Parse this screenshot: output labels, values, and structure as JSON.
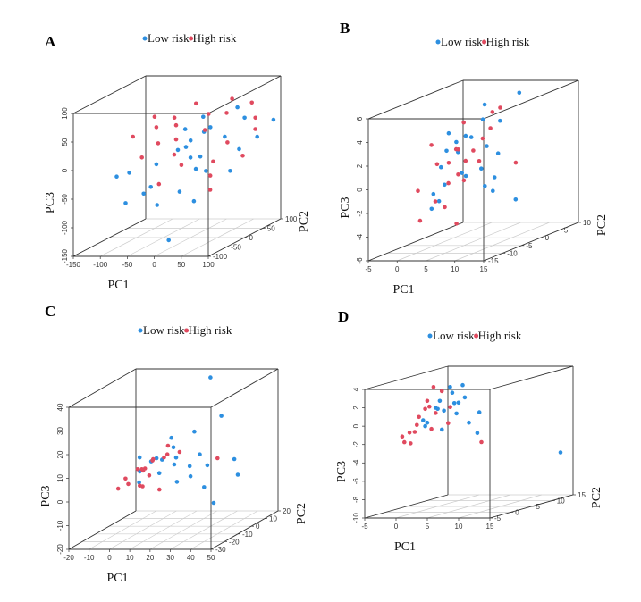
{
  "colors": {
    "low": "#2d8fe0",
    "high": "#e04a5f",
    "box": "#333333",
    "grid": "#cccccc"
  },
  "legend": {
    "low": "Low risk",
    "high": "High risk"
  },
  "chart_data": [
    {
      "type": "scatter3d",
      "panel": "A",
      "xlabel": "PC1",
      "ylabel": "PC2",
      "zlabel": "PC3",
      "xlim": [
        -150,
        100
      ],
      "ylim": [
        -100,
        100
      ],
      "zlim": [
        -150,
        100
      ],
      "xticks": [
        "-150",
        "-100",
        "-50",
        "0",
        "50",
        "100"
      ],
      "yticks": [
        "-100",
        "-50",
        "0",
        "50",
        "100"
      ],
      "zticks": [
        "-150",
        "-100",
        "-50",
        "0",
        "50",
        "100"
      ],
      "series": [
        {
          "name": "Low risk",
          "points": [
            [
              -100,
              -20,
              -30
            ],
            [
              -70,
              10,
              -25
            ],
            [
              -40,
              -50,
              -45
            ],
            [
              -20,
              30,
              10
            ],
            [
              0,
              0,
              -10
            ],
            [
              10,
              40,
              30
            ],
            [
              30,
              -30,
              -20
            ],
            [
              50,
              20,
              20
            ],
            [
              60,
              60,
              40
            ],
            [
              80,
              -10,
              -30
            ],
            [
              -60,
              -40,
              -60
            ],
            [
              -10,
              50,
              45
            ],
            [
              20,
              -60,
              -50
            ],
            [
              40,
              70,
              55
            ],
            [
              -30,
              10,
              0
            ],
            [
              5,
              -20,
              15
            ],
            [
              70,
              30,
              -5
            ],
            [
              90,
              50,
              10
            ],
            [
              -50,
              60,
              20
            ],
            [
              25,
              0,
              35
            ],
            [
              -15,
              -70,
              -70
            ],
            [
              45,
              -40,
              5
            ],
            [
              100,
              80,
              30
            ],
            [
              -80,
              -60,
              -70
            ],
            [
              15,
              20,
              -40
            ],
            [
              -130,
              -10,
              -40
            ],
            [
              60,
              -80,
              -60
            ],
            [
              20,
              -90,
              -125
            ]
          ]
        },
        {
          "name": "High risk",
          "points": [
            [
              -120,
              20,
              20
            ],
            [
              -90,
              40,
              30
            ],
            [
              -60,
              0,
              15
            ],
            [
              -40,
              20,
              40
            ],
            [
              -20,
              -10,
              25
            ],
            [
              0,
              50,
              50
            ],
            [
              20,
              10,
              35
            ],
            [
              40,
              40,
              55
            ],
            [
              60,
              80,
              60
            ],
            [
              80,
              60,
              40
            ],
            [
              -70,
              -30,
              0
            ],
            [
              -30,
              60,
              65
            ],
            [
              10,
              -40,
              -10
            ],
            [
              50,
              -20,
              -35
            ],
            [
              90,
              10,
              -10
            ],
            [
              -50,
              30,
              50
            ],
            [
              30,
              70,
              70
            ],
            [
              70,
              -50,
              -50
            ],
            [
              -10,
              -30,
              5
            ],
            [
              100,
              30,
              30
            ],
            [
              15,
              40,
              -30
            ],
            [
              -100,
              50,
              45
            ],
            [
              55,
              20,
              10
            ],
            [
              -25,
              -50,
              -40
            ]
          ]
        }
      ]
    },
    {
      "type": "scatter3d",
      "panel": "B",
      "xlabel": "PC1",
      "ylabel": "PC2",
      "zlabel": "PC3",
      "xlim": [
        -5,
        15
      ],
      "ylim": [
        -15,
        10
      ],
      "zlim": [
        -6,
        6
      ],
      "xticks": [
        "-5",
        "0",
        "5",
        "10",
        "15"
      ],
      "yticks": [
        "-15",
        "-10",
        "-5",
        "0",
        "5",
        "10"
      ],
      "zticks": [
        "-6",
        "-4",
        "-2",
        "0",
        "2",
        "4",
        "6"
      ],
      "series": [
        {
          "name": "Low risk",
          "points": [
            [
              2,
              -5,
              2
            ],
            [
              4,
              -3,
              3
            ],
            [
              3,
              -8,
              1
            ],
            [
              5,
              0,
              4
            ],
            [
              6,
              -6,
              0
            ],
            [
              1,
              -4,
              -1
            ],
            [
              4,
              2,
              5
            ],
            [
              7,
              -2,
              2
            ],
            [
              3,
              -10,
              -1
            ],
            [
              5,
              -7,
              3
            ],
            [
              2,
              -2,
              1.5
            ],
            [
              6,
              3,
              3.5
            ],
            [
              8,
              -5,
              0.5
            ],
            [
              4,
              -12,
              -2
            ],
            [
              3,
              0,
              2.5
            ],
            [
              7,
              1,
              1
            ],
            [
              5,
              -9,
              4
            ],
            [
              9,
              -3,
              -0.5
            ],
            [
              2,
              -7,
              -2
            ],
            [
              6,
              -1,
              -1.5
            ],
            [
              10,
              2,
              6
            ],
            [
              12,
              -8,
              -1
            ],
            [
              4,
              -4,
              0
            ],
            [
              12,
              -2,
              -2.5
            ]
          ]
        },
        {
          "name": "High risk",
          "points": [
            [
              1,
              -6,
              1
            ],
            [
              3,
              -4,
              2
            ],
            [
              2,
              -9,
              3
            ],
            [
              4,
              -1,
              1.5
            ],
            [
              5,
              -5,
              -0.5
            ],
            [
              3,
              -2,
              4
            ],
            [
              6,
              -8,
              2.5
            ],
            [
              2,
              0,
              0.5
            ],
            [
              4,
              -11,
              -1.5
            ],
            [
              5,
              2,
              3
            ],
            [
              7,
              -4,
              1
            ],
            [
              1,
              -3,
              -1
            ],
            [
              3,
              -7,
              -2.5
            ],
            [
              6,
              1,
              4.5
            ],
            [
              8,
              0,
              5
            ],
            [
              4,
              -5,
              0
            ],
            [
              2,
              -12,
              -3
            ],
            [
              5,
              -9,
              1.5
            ],
            [
              -1,
              -8,
              -1
            ],
            [
              14,
              -5,
              1
            ],
            [
              7,
              -10,
              -3.5
            ],
            [
              3,
              3,
              2
            ]
          ]
        }
      ]
    },
    {
      "type": "scatter3d",
      "panel": "C",
      "xlabel": "PC1",
      "ylabel": "PC2",
      "zlabel": "PC3",
      "xlim": [
        -20,
        50
      ],
      "ylim": [
        -30,
        20
      ],
      "zlim": [
        -20,
        40
      ],
      "xticks": [
        "-20",
        "-10",
        "0",
        "10",
        "20",
        "30",
        "40",
        "50"
      ],
      "yticks": [
        "-30",
        "-20",
        "-10",
        "0",
        "10",
        "20"
      ],
      "zticks": [
        "-20",
        "-10",
        "0",
        "10",
        "20",
        "30",
        "40"
      ],
      "series": [
        {
          "name": "Low risk",
          "points": [
            [
              5,
              -15,
              8
            ],
            [
              10,
              -10,
              12
            ],
            [
              15,
              -5,
              15
            ],
            [
              20,
              -12,
              10
            ],
            [
              8,
              -20,
              5
            ],
            [
              25,
              -8,
              8
            ],
            [
              30,
              -15,
              6
            ],
            [
              12,
              -2,
              18
            ],
            [
              18,
              -18,
              14
            ],
            [
              22,
              0,
              20
            ],
            [
              28,
              -5,
              12
            ],
            [
              35,
              -10,
              9
            ],
            [
              6,
              -8,
              10
            ],
            [
              14,
              -14,
              7
            ],
            [
              40,
              -20,
              3
            ],
            [
              45,
              -5,
              10
            ],
            [
              32,
              5,
              25
            ],
            [
              48,
              -25,
              -2
            ],
            [
              17,
              -6,
              11
            ],
            [
              24,
              -16,
              4
            ],
            [
              3,
              -12,
              13
            ],
            [
              20,
              15,
              38
            ],
            [
              50,
              -10,
              5
            ]
          ]
        },
        {
          "name": "High risk",
          "points": [
            [
              0,
              -18,
              6
            ],
            [
              2,
              -12,
              8
            ],
            [
              4,
              -22,
              5
            ],
            [
              6,
              -15,
              9
            ],
            [
              8,
              -10,
              11
            ],
            [
              3,
              -8,
              7
            ],
            [
              10,
              -20,
              10
            ],
            [
              12,
              -5,
              12
            ],
            [
              1,
              -25,
              4
            ],
            [
              15,
              -12,
              13
            ],
            [
              7,
              -18,
              3
            ],
            [
              20,
              -8,
              14
            ],
            [
              5,
              -5,
              10
            ],
            [
              9,
              -14,
              6
            ],
            [
              18,
              -20,
              2
            ],
            [
              40,
              -10,
              12
            ],
            [
              13,
              -25,
              5
            ],
            [
              11,
              -3,
              15
            ]
          ]
        }
      ]
    },
    {
      "type": "scatter3d",
      "panel": "D",
      "xlabel": "PC1",
      "ylabel": "PC2",
      "zlabel": "PC3",
      "xlim": [
        -5,
        15
      ],
      "ylim": [
        -5,
        15
      ],
      "zlim": [
        -10,
        4
      ],
      "xticks": [
        "-5",
        "0",
        "5",
        "10",
        "15"
      ],
      "yticks": [
        "-5",
        "0",
        "5",
        "10",
        "15"
      ],
      "zticks": [
        "-10",
        "-8",
        "-6",
        "-4",
        "-2",
        "0",
        "2",
        "4"
      ],
      "series": [
        {
          "name": "Low risk",
          "points": [
            [
              1,
              0,
              0
            ],
            [
              2,
              2,
              1
            ],
            [
              3,
              1,
              2
            ],
            [
              4,
              3,
              1.5
            ],
            [
              2,
              -1,
              -0.5
            ],
            [
              3,
              4,
              2.5
            ],
            [
              5,
              2,
              0.5
            ],
            [
              1,
              3,
              1
            ],
            [
              4,
              0,
              -1
            ],
            [
              6,
              1,
              1.8
            ],
            [
              2,
              5,
              3
            ],
            [
              3,
              -2,
              0
            ],
            [
              5,
              4,
              2
            ],
            [
              7,
              2,
              -0.5
            ],
            [
              8,
              3,
              0.5
            ],
            [
              9,
              1,
              -1.5
            ],
            [
              3,
              2,
              0.8
            ],
            [
              4,
              5,
              3.2
            ],
            [
              15,
              12,
              -5
            ]
          ]
        },
        {
          "name": "High risk",
          "points": [
            [
              0,
              0,
              -0.5
            ],
            [
              1,
              -1,
              0.5
            ],
            [
              0,
              2,
              1
            ],
            [
              2,
              0,
              1.5
            ],
            [
              -1,
              -2,
              -1.5
            ],
            [
              1,
              1,
              2
            ],
            [
              3,
              0,
              0.8
            ],
            [
              0,
              -3,
              -2
            ],
            [
              2,
              3,
              2.8
            ],
            [
              1,
              -2,
              -1
            ],
            [
              -1,
              0,
              -2.5
            ],
            [
              4,
              2,
              1.2
            ],
            [
              3,
              -1,
              -0.8
            ],
            [
              2,
              1,
              3.5
            ],
            [
              -0.5,
              -1,
              -1.2
            ],
            [
              7,
              5,
              -3
            ],
            [
              5,
              0,
              -0.3
            ]
          ]
        }
      ]
    }
  ]
}
